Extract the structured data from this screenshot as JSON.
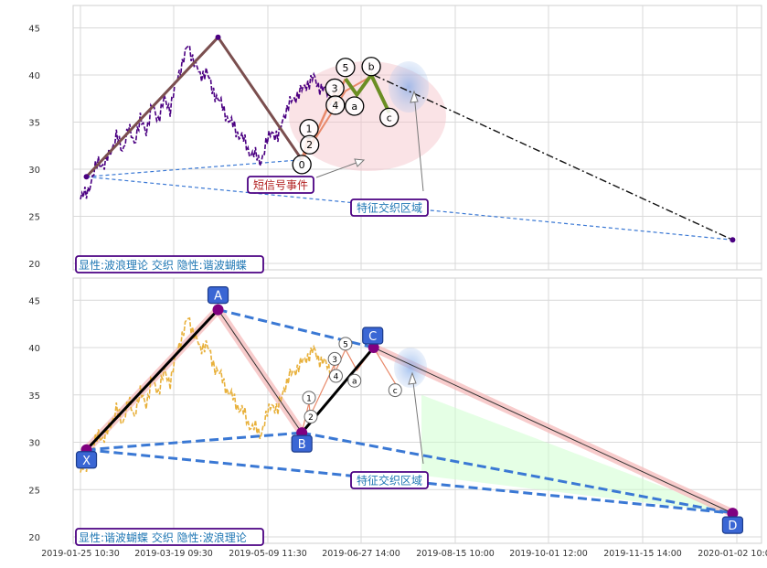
{
  "chart_data": [
    {
      "type": "line",
      "panel": "top",
      "ylim": [
        19,
        47
      ],
      "yticks": [
        20,
        25,
        30,
        35,
        40,
        45
      ],
      "grid": true,
      "price_color": "#4b0082",
      "price_series": [
        [
          0,
          26.8
        ],
        [
          1,
          27.5
        ],
        [
          2,
          29.0
        ],
        [
          3,
          31.0
        ],
        [
          4,
          30.2
        ],
        [
          5,
          32.0
        ],
        [
          6,
          33.4
        ],
        [
          7,
          32.1
        ],
        [
          8,
          34.2
        ],
        [
          9,
          33.0
        ],
        [
          10,
          35.1
        ],
        [
          11,
          34.2
        ],
        [
          12,
          36.6
        ],
        [
          13,
          35.4
        ],
        [
          14,
          37.3
        ],
        [
          15,
          36.5
        ],
        [
          16,
          39.1
        ],
        [
          17,
          41.4
        ],
        [
          18,
          43.0
        ],
        [
          19,
          41.6
        ],
        [
          20,
          39.7
        ],
        [
          21,
          40.6
        ],
        [
          22,
          38.4
        ],
        [
          23,
          37.6
        ],
        [
          24,
          36.1
        ],
        [
          25,
          35.2
        ],
        [
          26,
          34.0
        ],
        [
          27,
          33.5
        ],
        [
          28,
          32.0
        ],
        [
          29,
          31.6
        ],
        [
          30,
          30.8
        ],
        [
          31,
          32.5
        ],
        [
          32,
          34.2
        ],
        [
          33,
          33.2
        ],
        [
          34,
          35.8
        ],
        [
          35,
          36.9
        ],
        [
          36,
          37.8
        ],
        [
          37,
          38.3
        ],
        [
          38,
          39.2
        ],
        [
          39,
          39.6
        ],
        [
          40,
          38.8
        ],
        [
          41,
          38.2
        ],
        [
          42,
          37.6
        ]
      ],
      "zigzag": [
        [
          1,
          29.2
        ],
        [
          23,
          44.0
        ],
        [
          37,
          31.0
        ],
        [
          49,
          40.0
        ],
        [
          53,
          37.0
        ],
        [
          59,
          40.5
        ],
        [
          65,
          37.0
        ],
        [
          109,
          22.5
        ]
      ],
      "wave_labels": [
        {
          "label": "0",
          "x": 37,
          "y": 30.5
        },
        {
          "label": "1",
          "x": 38.2,
          "y": 34.3
        },
        {
          "label": "2",
          "x": 38.3,
          "y": 32.6
        },
        {
          "label": "3",
          "x": 42.5,
          "y": 38.6
        },
        {
          "label": "4",
          "x": 42.6,
          "y": 36.8
        },
        {
          "label": "5",
          "x": 44.3,
          "y": 40.8
        },
        {
          "label": "a",
          "x": 45.8,
          "y": 36.7
        },
        {
          "label": "b",
          "x": 48.6,
          "y": 40.9
        },
        {
          "label": "c",
          "x": 51.6,
          "y": 35.5
        }
      ],
      "annotations": [
        "短信号事件",
        "特征交织区域"
      ],
      "legend": "显性:波浪理论 交织 隐性:谐波蝴蝶"
    },
    {
      "type": "line",
      "panel": "bottom",
      "ylim": [
        19,
        47
      ],
      "yticks": [
        20,
        25,
        30,
        35,
        40,
        45
      ],
      "grid": true,
      "price_color": "#e8b13c",
      "xticks": [
        "2019-01-25 10:30",
        "2019-03-19 09:30",
        "2019-05-09 11:30",
        "2019-06-27 14:00",
        "2019-08-15 10:00",
        "2019-10-01 12:00",
        "2019-11-15 14:00",
        "2020-01-02 10:00"
      ],
      "points": [
        {
          "label": "X",
          "x": 1,
          "y": 29.2
        },
        {
          "label": "A",
          "x": 23,
          "y": 44.0
        },
        {
          "label": "B",
          "x": 37,
          "y": 31.0
        },
        {
          "label": "C",
          "x": 49,
          "y": 40.0
        },
        {
          "label": "D",
          "x": 109,
          "y": 22.5
        }
      ],
      "small_wave_labels": [
        "1",
        "2",
        "3",
        "4",
        "5",
        "a",
        "c"
      ],
      "annotations": [
        "特征交织区域"
      ],
      "legend": "显性:谐波蝴蝶 交织 隐性:波浪理论"
    }
  ]
}
